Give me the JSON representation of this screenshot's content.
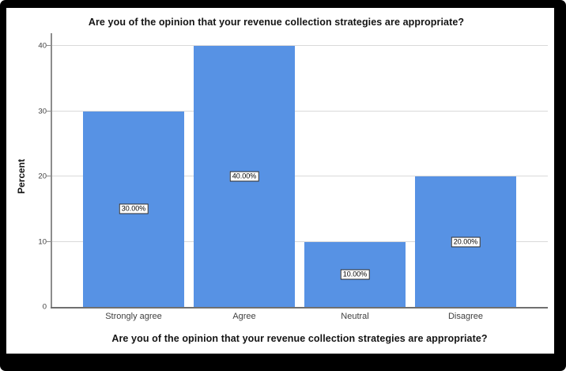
{
  "window": {
    "background_color": "#000000",
    "panel_color": "#FFFFFF"
  },
  "chart_data": {
    "type": "bar",
    "title": "Are you of the opinion that your revenue collection strategies are appropriate?",
    "xlabel": "Are you of the opinion that your revenue collection strategies are appropriate?",
    "ylabel": "Percent",
    "categories": [
      "Strongly agree",
      "Agree",
      "Neutral",
      "Disagree"
    ],
    "values": [
      30,
      40,
      10,
      20
    ],
    "data_labels": [
      "30.00%",
      "40.00%",
      "10.00%",
      "20.00%"
    ],
    "ylim": [
      0,
      40
    ],
    "y_ticks": [
      0,
      10,
      20,
      30,
      40
    ],
    "gridline_values": [
      10,
      20,
      30,
      40
    ],
    "grid": true,
    "legend_position": "none",
    "bar_color": "#5792E4",
    "gridline_color": "#D9D9D9",
    "axis_line_color": "#8C8C8C",
    "x_axis_line_color": "#707070",
    "value_label_box": {
      "background": "#FFFFFF",
      "border_color": "#2B2B2B",
      "text_color": "#000000"
    }
  }
}
